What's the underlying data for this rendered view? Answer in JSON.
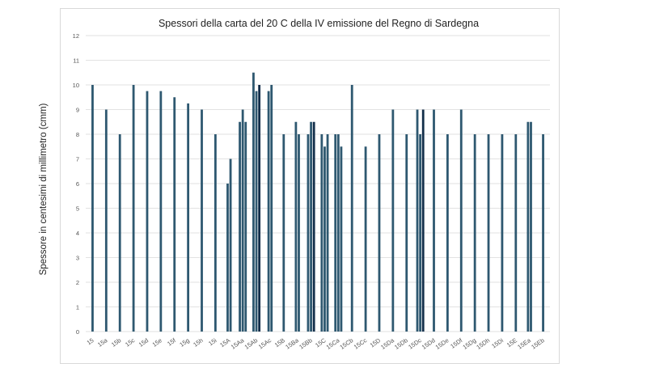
{
  "chart_data": {
    "type": "bar",
    "title": "Spessori della carta del  20 C della IV emissione del Regno di Sardegna",
    "ylabel": "Spessore in centesimi di millimetro  (cmm)",
    "xlabel": "",
    "ylim": [
      0,
      12
    ],
    "yticks": [
      0,
      1,
      2,
      3,
      4,
      5,
      6,
      7,
      8,
      9,
      10,
      11,
      12
    ],
    "grid": "horizontal",
    "colors": {
      "bar": "#2e5870",
      "bar_dark": "#132e4a",
      "grid": "#d9d9d9"
    },
    "groups": [
      {
        "label": "15",
        "values": [
          10
        ]
      },
      {
        "label": "15a",
        "values": [
          9
        ]
      },
      {
        "label": "15b",
        "values": [
          8
        ]
      },
      {
        "label": "15c",
        "values": [
          10
        ]
      },
      {
        "label": "15d",
        "values": [
          9.75
        ]
      },
      {
        "label": "15e",
        "values": [
          9.75
        ]
      },
      {
        "label": "15f",
        "values": [
          9.5
        ]
      },
      {
        "label": "15g",
        "values": [
          9.25
        ]
      },
      {
        "label": "15h",
        "values": [
          9
        ]
      },
      {
        "label": "15i",
        "values": [
          8
        ]
      },
      {
        "label": "15A",
        "values": [
          6,
          7
        ]
      },
      {
        "label": "15Aa",
        "values": [
          8.5,
          9,
          8.5
        ]
      },
      {
        "label": "15Ab",
        "values": [
          10.5,
          9.75,
          10
        ]
      },
      {
        "label": "15Ac",
        "values": [
          9.75,
          10
        ]
      },
      {
        "label": "15B",
        "values": [
          8
        ]
      },
      {
        "label": "15Ba",
        "values": [
          8.5,
          8
        ]
      },
      {
        "label": "15Bb",
        "values": [
          8,
          8.5,
          8.5
        ]
      },
      {
        "label": "15C",
        "values": [
          8,
          7.5,
          8
        ]
      },
      {
        "label": "15Ca",
        "values": [
          8,
          8,
          7.5
        ]
      },
      {
        "label": "15Cb",
        "values": [
          10
        ]
      },
      {
        "label": "15Cc",
        "values": [
          7.5
        ]
      },
      {
        "label": "15D",
        "values": [
          8
        ]
      },
      {
        "label": "15Da",
        "values": [
          9
        ]
      },
      {
        "label": "15Db",
        "values": [
          8
        ]
      },
      {
        "label": "15Dc",
        "values": [
          9,
          8,
          9
        ]
      },
      {
        "label": "15Dd",
        "values": [
          9
        ]
      },
      {
        "label": "15De",
        "values": [
          8
        ]
      },
      {
        "label": "15Df",
        "values": [
          9
        ]
      },
      {
        "label": "15Dg",
        "values": [
          8
        ]
      },
      {
        "label": "15Dh",
        "values": [
          8
        ]
      },
      {
        "label": "15Di",
        "values": [
          8
        ]
      },
      {
        "label": "15E",
        "values": [
          8
        ]
      },
      {
        "label": "15Ea",
        "values": [
          8.5,
          8.5
        ]
      },
      {
        "label": "15Eb",
        "values": [
          8
        ]
      }
    ]
  }
}
